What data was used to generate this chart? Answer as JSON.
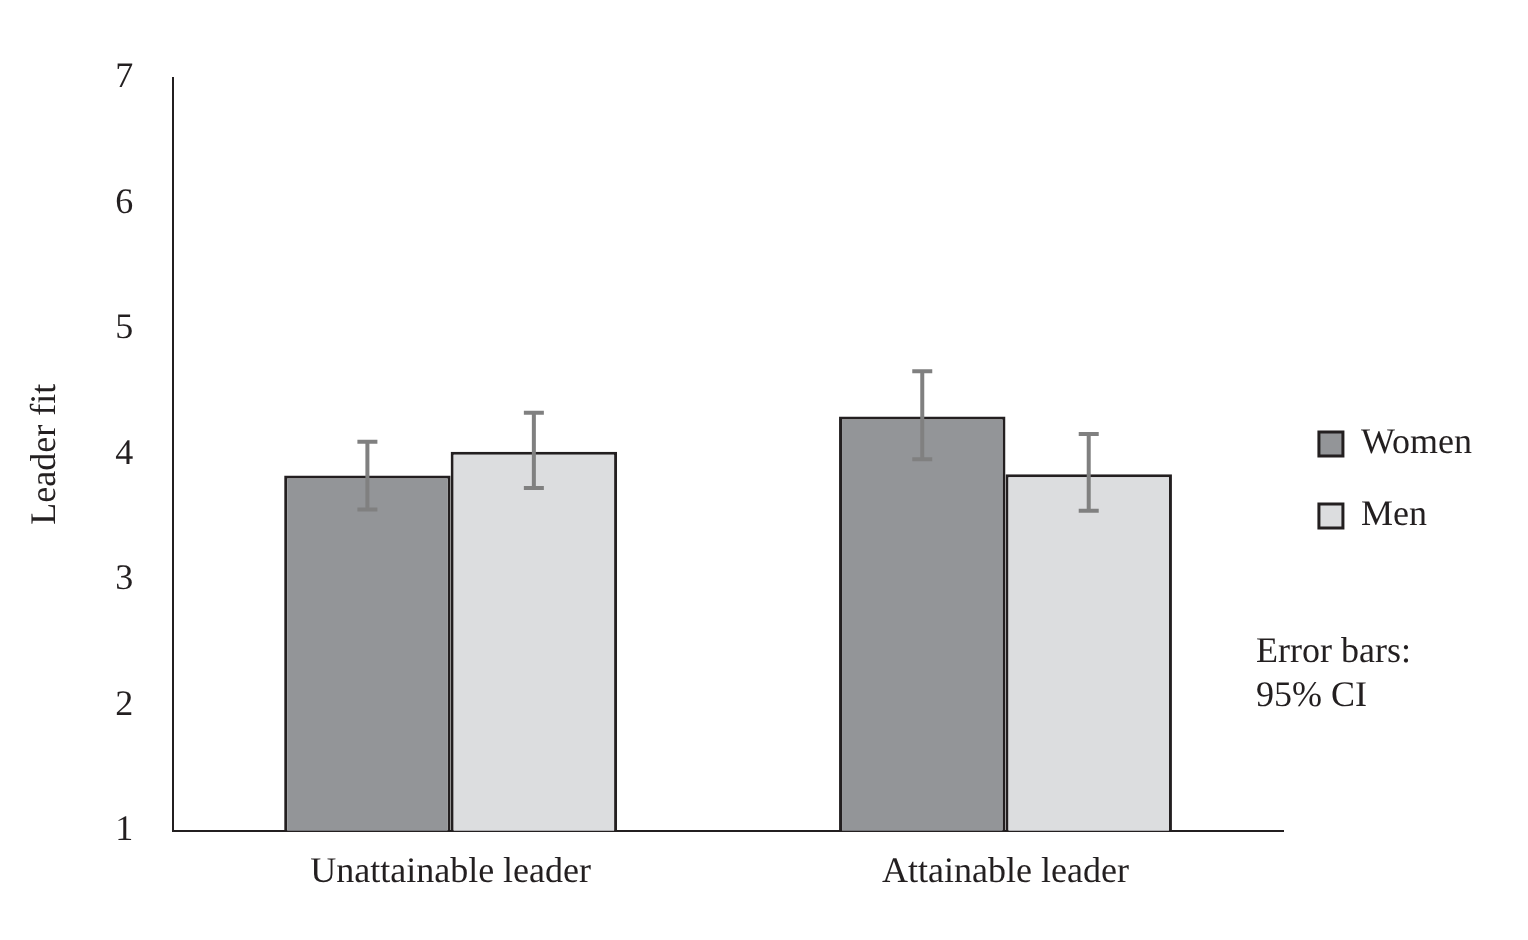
{
  "chart_data": {
    "type": "bar",
    "ylabel": "Leader fit",
    "categories": [
      "Unattainable leader",
      "Attainable leader"
    ],
    "series": [
      {
        "name": "Women",
        "color": "#939598",
        "values": [
          3.83,
          4.3
        ],
        "errors": [
          [
            3.56,
            4.1
          ],
          [
            3.96,
            4.66
          ]
        ]
      },
      {
        "name": "Men",
        "color": "#dcdddf",
        "values": [
          4.02,
          3.84
        ],
        "errors": [
          [
            3.73,
            4.33
          ],
          [
            3.55,
            4.16
          ]
        ]
      }
    ],
    "ylim": [
      1,
      7
    ],
    "yticks": [
      1,
      2,
      3,
      4,
      5,
      6,
      7
    ],
    "grid": false,
    "legend": "right",
    "annotations": [
      "Error bars:\n95% CI"
    ]
  }
}
